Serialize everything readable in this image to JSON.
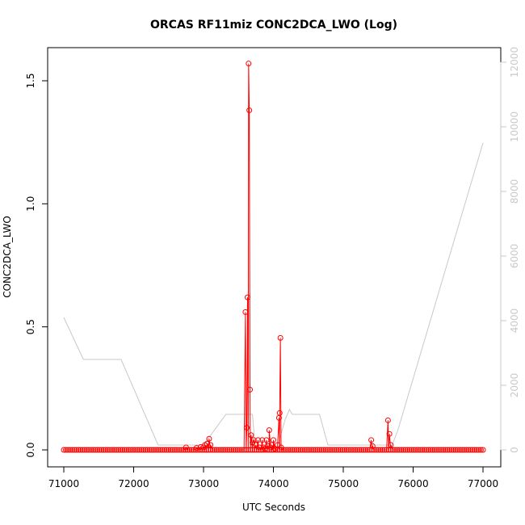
{
  "chart_data": {
    "type": "line",
    "title": "ORCAS RF11miz CONC2DCA_LWO (Log)",
    "xlabel": "UTC Seconds",
    "ylabel": "CONC2DCA_LWO",
    "xlim": [
      71000,
      77000
    ],
    "ylim": [
      0,
      1.6
    ],
    "y2lim": [
      0,
      12000
    ],
    "x_ticks": [
      71000,
      72000,
      73000,
      74000,
      75000,
      76000,
      77000
    ],
    "y_ticks": [
      0.0,
      0.5,
      1.0,
      1.5
    ],
    "y_tick_labels": [
      "0.0",
      "0.5",
      "1.0",
      "1.5"
    ],
    "y2_ticks": [
      0,
      2000,
      4000,
      6000,
      8000,
      10000,
      12000
    ],
    "grid": false,
    "legend": "none",
    "colors": {
      "primary": "#ff0000",
      "secondary": "#c8c8c8"
    },
    "series": [
      {
        "axis": "left",
        "style": "line+points",
        "color": "#ff0000",
        "baseline": {
          "x_start": 71000,
          "x_end": 77000,
          "step": 30,
          "value": 0
        },
        "points": [
          [
            72750,
            0.01
          ],
          [
            72900,
            0.008
          ],
          [
            72960,
            0.012
          ],
          [
            73000,
            0.01
          ],
          [
            73020,
            0.02
          ],
          [
            73050,
            0.025
          ],
          [
            73080,
            0.045
          ],
          [
            73100,
            0.02
          ],
          [
            73600,
            0.56
          ],
          [
            73620,
            0.09
          ],
          [
            73630,
            0.62
          ],
          [
            73645,
            1.57
          ],
          [
            73655,
            1.38
          ],
          [
            73665,
            0.245
          ],
          [
            73680,
            0.06
          ],
          [
            73700,
            0.03
          ],
          [
            73720,
            0.04
          ],
          [
            73750,
            0.02
          ],
          [
            73780,
            0.04
          ],
          [
            73800,
            0.01
          ],
          [
            73840,
            0.04
          ],
          [
            73860,
            0.01
          ],
          [
            73880,
            0.005
          ],
          [
            73900,
            0.04
          ],
          [
            73920,
            0.015
          ],
          [
            73940,
            0.08
          ],
          [
            73960,
            0.01
          ],
          [
            73980,
            0.02
          ],
          [
            74000,
            0.04
          ],
          [
            74020,
            0.005
          ],
          [
            74060,
            0.02
          ],
          [
            74080,
            0.13
          ],
          [
            74090,
            0.15
          ],
          [
            74100,
            0.455
          ],
          [
            74110,
            0.01
          ],
          [
            75400,
            0.04
          ],
          [
            75420,
            0.015
          ],
          [
            75640,
            0.12
          ],
          [
            75660,
            0.065
          ],
          [
            75680,
            0.02
          ]
        ]
      },
      {
        "axis": "right",
        "style": "line",
        "color": "#c8c8c8",
        "x": [
          71000,
          71280,
          71820,
          72350,
          72880,
          73000,
          73320,
          73700,
          73740,
          74050,
          74170,
          74230,
          74270,
          74660,
          74780,
          75400,
          75700,
          75780,
          77000
        ],
        "y": [
          4100,
          2800,
          2800,
          150,
          150,
          150,
          1100,
          1100,
          50,
          50,
          950,
          1250,
          1100,
          1100,
          150,
          150,
          150,
          600,
          9500
        ]
      }
    ]
  }
}
